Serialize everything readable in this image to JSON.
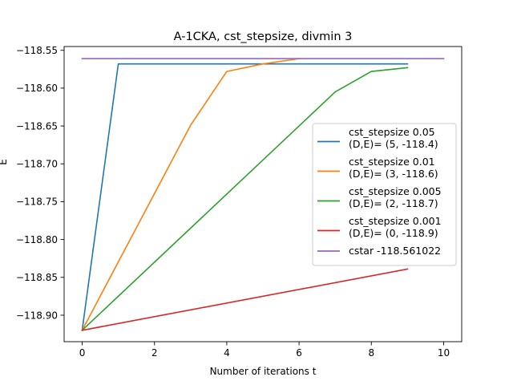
{
  "chart_data": {
    "type": "line",
    "title": "A-1CKA, cst_stepsize, divmin 3",
    "xlabel": "Number of iterations t",
    "ylabel": "E",
    "xlim": [
      -0.5,
      10.5
    ],
    "ylim": [
      -118.935,
      -118.545
    ],
    "xticks": [
      0,
      2,
      4,
      6,
      8,
      10
    ],
    "yticks": [
      -118.9,
      -118.85,
      -118.8,
      -118.75,
      -118.7,
      -118.65,
      -118.6,
      -118.55
    ],
    "xtick_labels": [
      "0",
      "2",
      "4",
      "6",
      "8",
      "10"
    ],
    "ytick_labels": [
      "−118.90",
      "−118.85",
      "−118.80",
      "−118.75",
      "−118.70",
      "−118.65",
      "−118.60",
      "−118.55"
    ],
    "legend_position": "center-right",
    "grid": false,
    "series": [
      {
        "legend_lines": [
          "cst_stepsize 0.05",
          "(D,E)= (5, -118.4)"
        ],
        "color": "#1f77b4",
        "x": [
          0,
          1,
          2,
          3,
          4,
          5,
          6,
          7,
          8,
          9
        ],
        "y": [
          -118.92,
          -118.568,
          -118.568,
          -118.568,
          -118.568,
          -118.568,
          -118.568,
          -118.568,
          -118.568,
          -118.568
        ]
      },
      {
        "legend_lines": [
          "cst_stepsize 0.01",
          "(D,E)= (3, -118.6)"
        ],
        "color": "#ff7f0e",
        "x": [
          0,
          3,
          4,
          5,
          6
        ],
        "y": [
          -118.92,
          -118.649,
          -118.578,
          -118.568,
          -118.561
        ]
      },
      {
        "legend_lines": [
          "cst_stepsize 0.005",
          "(D,E)= (2, -118.7)"
        ],
        "color": "#2ca02c",
        "x": [
          0,
          7,
          8,
          9
        ],
        "y": [
          -118.92,
          -118.605,
          -118.578,
          -118.573
        ]
      },
      {
        "legend_lines": [
          "cst_stepsize 0.001",
          "(D,E)= (0, -118.9)"
        ],
        "color": "#d62728",
        "x": [
          0,
          9
        ],
        "y": [
          -118.92,
          -118.839
        ]
      },
      {
        "legend_lines": [
          "cstar -118.561022"
        ],
        "color": "#9467bd",
        "x": [
          0,
          10
        ],
        "y": [
          -118.561022,
          -118.561022
        ]
      }
    ]
  }
}
